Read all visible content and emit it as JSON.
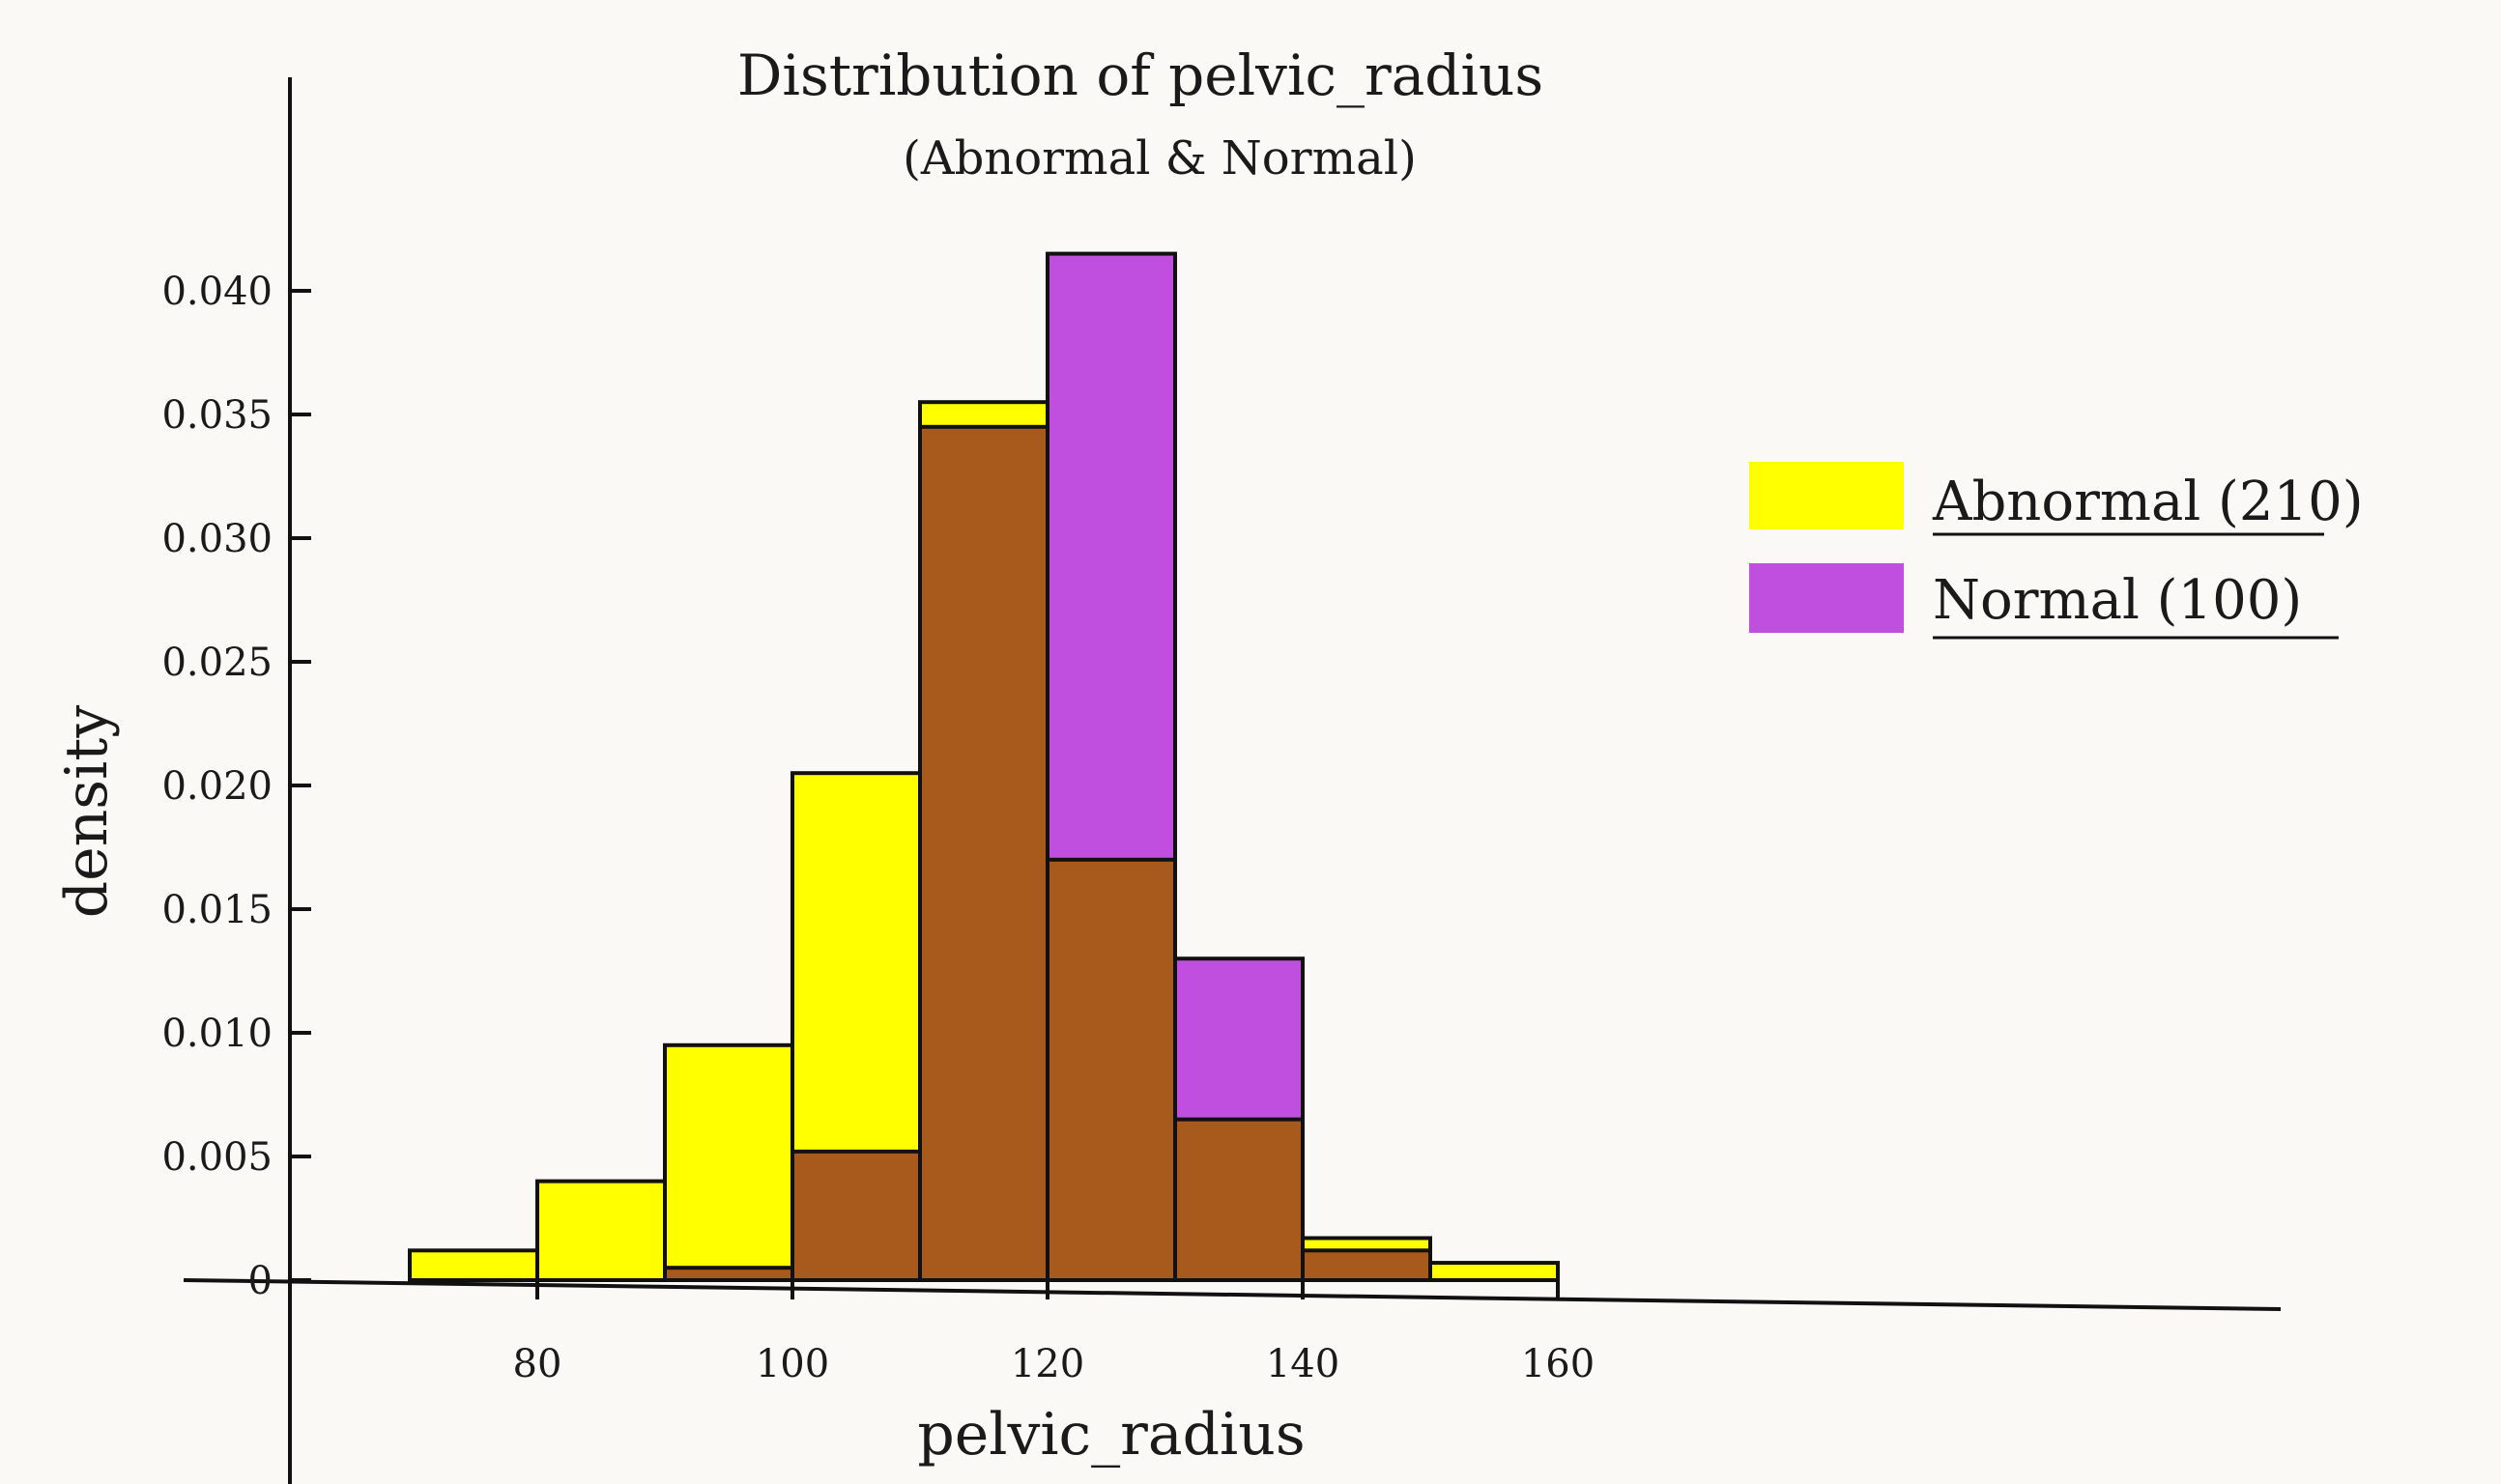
{
  "chart_data": {
    "type": "bar",
    "title": "Distribution of pelvic_radius",
    "subtitle": "(Abnormal & Normal)",
    "xlabel": "pelvic_radius",
    "ylabel": "density",
    "xlim": [
      65,
      160
    ],
    "ylim": [
      0,
      0.042
    ],
    "x_ticks": [
      "80",
      "100",
      "120",
      "140",
      "160"
    ],
    "y_ticks": [
      "0",
      "0.005",
      "0.010",
      "0.015",
      "0.020",
      "0.025",
      "0.030",
      "0.035",
      "0.040"
    ],
    "bin_edges": [
      70,
      80,
      90,
      100,
      110,
      120,
      130,
      140,
      150,
      160
    ],
    "overlap_color": "#a85a1c",
    "series": [
      {
        "name": "Abnormal (210)",
        "color": "#ffff00",
        "values": [
          0.0012,
          0.004,
          0.0095,
          0.0205,
          0.0355,
          0.017,
          0.0065,
          0.0017,
          0.0007
        ]
      },
      {
        "name": "Normal (100)",
        "color": "#c04fe0",
        "values": [
          0.0,
          0.0,
          0.0005,
          0.0052,
          0.0345,
          0.0415,
          0.013,
          0.0012,
          0.0
        ]
      }
    ],
    "legend_position": "right",
    "grid": false
  }
}
